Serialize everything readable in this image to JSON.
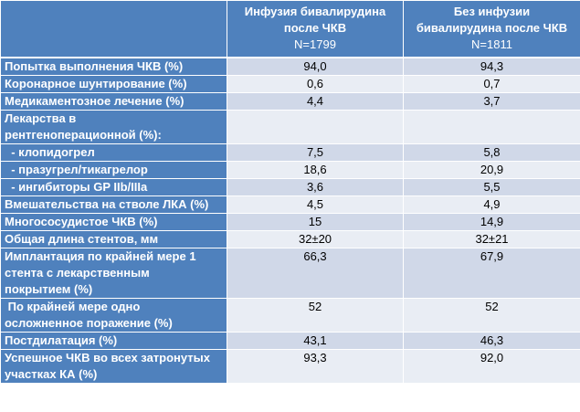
{
  "header": {
    "col1": "",
    "col2": {
      "title_line1": "Инфузия бивалирудина",
      "title_line2": "после ЧКВ",
      "n": "N=1799"
    },
    "col3": {
      "title_line1": "Без инфузии",
      "title_line2": "бивалирудина после ЧКВ",
      "n": "N=1811"
    }
  },
  "rows": [
    {
      "label_lines": [
        "Попытка выполнения ЧКВ (%)"
      ],
      "a": "94,0",
      "b": "94,3"
    },
    {
      "label_lines": [
        "Коронарное шунтирование (%)"
      ],
      "a": "0,6",
      "b": "0,7"
    },
    {
      "label_lines": [
        "Медикаментозное лечение (%)"
      ],
      "a": "4,4",
      "b": "3,7"
    },
    {
      "label_lines": [
        "Лекарства в",
        "рентгеноперационной (%):"
      ],
      "a": "",
      "b": ""
    },
    {
      "label_lines": [
        "  - клопидогрел"
      ],
      "a": "7,5",
      "b": "5,8"
    },
    {
      "label_lines": [
        "  - празугрел/тикагрелор"
      ],
      "a": "18,6",
      "b": "20,9"
    },
    {
      "label_lines": [
        "  - ингибиторы GP IIb/IIIa"
      ],
      "a": "3,6",
      "b": "5,5"
    },
    {
      "label_lines": [
        "Вмешательства на стволе ЛКА (%)"
      ],
      "a": "4,5",
      "b": "4,9"
    },
    {
      "label_lines": [
        "Многососудистое ЧКВ (%)"
      ],
      "a": "15",
      "b": "14,9"
    },
    {
      "label_lines": [
        "Общая длина стентов, мм"
      ],
      "a": "32±20",
      "b": "32±21"
    },
    {
      "label_lines": [
        "Имплантация по крайней мере 1",
        "стента с лекарственным",
        "покрытием (%)"
      ],
      "a": "66,3",
      "b": "67,9"
    },
    {
      "label_lines": [
        " По крайней мере одно",
        "осложненное поражение (%)"
      ],
      "a": "52",
      "b": "52"
    },
    {
      "label_lines": [
        "Постдилатация (%)"
      ],
      "a": "43,1",
      "b": "46,3"
    },
    {
      "label_lines": [
        "Успешное ЧКВ во всех затронутых",
        "участках КА (%)"
      ],
      "a": "93,3",
      "b": "92,0"
    }
  ]
}
